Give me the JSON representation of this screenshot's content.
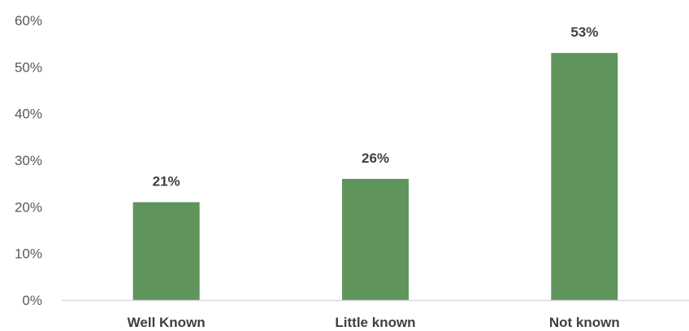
{
  "chart_data": {
    "type": "bar",
    "categories": [
      "Well Known",
      "Little known",
      "Not known"
    ],
    "values": [
      21,
      26,
      53
    ],
    "data_labels": [
      "21%",
      "26%",
      "53%"
    ],
    "y_ticks": [
      "0%",
      "10%",
      "20%",
      "30%",
      "40%",
      "50%",
      "60%"
    ],
    "y_tick_values": [
      0,
      10,
      20,
      30,
      40,
      50,
      60
    ],
    "ylim": [
      0,
      60
    ],
    "grid": false,
    "legend": "none",
    "bar_color": "#5f955c",
    "axis_color": "#d9d9d9"
  }
}
